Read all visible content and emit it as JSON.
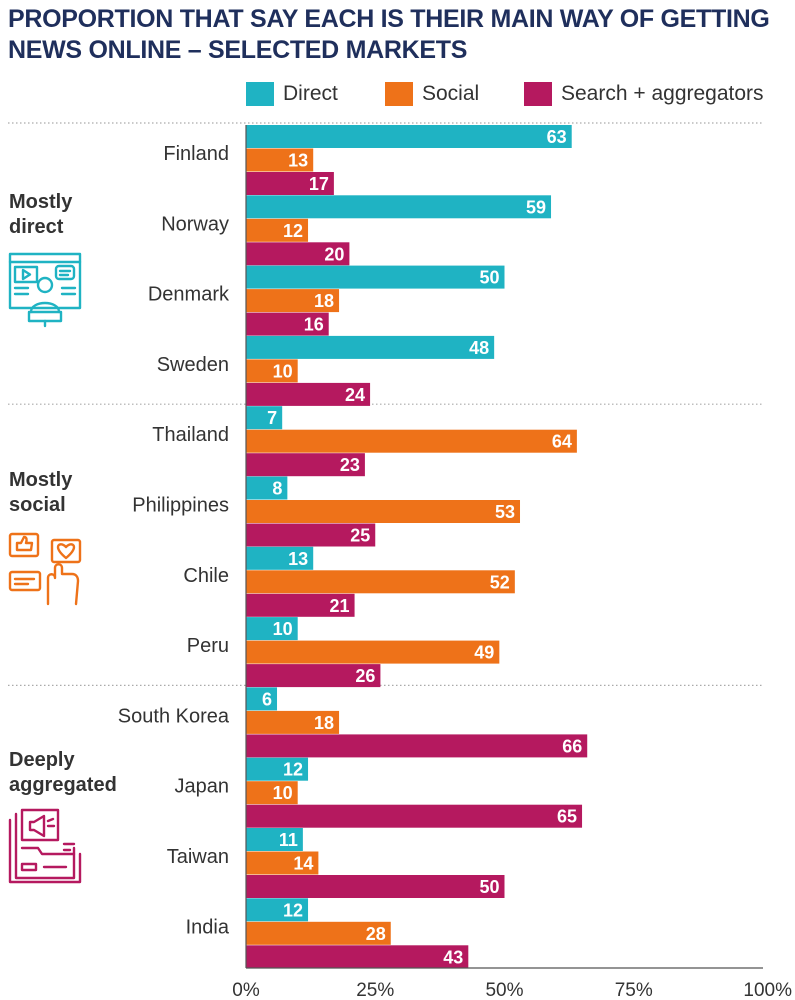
{
  "colors": {
    "direct": "#1fb3c3",
    "social": "#ee7219",
    "search": "#b5195f",
    "title": "#1f2f5c",
    "text": "#333333",
    "divider": "#aaaaaa"
  },
  "chart_data": {
    "type": "bar",
    "orientation": "horizontal",
    "title": "PROPORTION THAT SAY EACH IS THEIR MAIN WAY OF GETTING NEWS ONLINE – SELECTED MARKETS",
    "legend": [
      "Direct",
      "Social",
      "Search + aggregators"
    ],
    "xlim": [
      0,
      100
    ],
    "xticks": [
      "0%",
      "25%",
      "50%",
      "75%",
      "100%"
    ],
    "groups": [
      {
        "label_line1": "Mostly",
        "label_line2": "direct",
        "icon": "video-presentation-icon",
        "countries": [
          {
            "name": "Finland",
            "values": [
              63,
              13,
              17
            ]
          },
          {
            "name": "Norway",
            "values": [
              59,
              12,
              20
            ]
          },
          {
            "name": "Denmark",
            "values": [
              50,
              18,
              16
            ]
          },
          {
            "name": "Sweden",
            "values": [
              48,
              10,
              24
            ]
          }
        ]
      },
      {
        "label_line1": "Mostly",
        "label_line2": "social",
        "icon": "social-reactions-icon",
        "countries": [
          {
            "name": "Thailand",
            "values": [
              7,
              64,
              23
            ]
          },
          {
            "name": "Philippines",
            "values": [
              8,
              53,
              25
            ]
          },
          {
            "name": "Chile",
            "values": [
              13,
              52,
              21
            ]
          },
          {
            "name": "Peru",
            "values": [
              10,
              49,
              26
            ]
          }
        ]
      },
      {
        "label_line1": "Deeply",
        "label_line2": "aggregated",
        "icon": "news-feed-icon",
        "countries": [
          {
            "name": "South Korea",
            "values": [
              6,
              18,
              66
            ]
          },
          {
            "name": "Japan",
            "values": [
              12,
              10,
              65
            ]
          },
          {
            "name": "Taiwan",
            "values": [
              11,
              14,
              50
            ]
          },
          {
            "name": "India",
            "values": [
              12,
              28,
              43
            ]
          }
        ]
      }
    ]
  }
}
